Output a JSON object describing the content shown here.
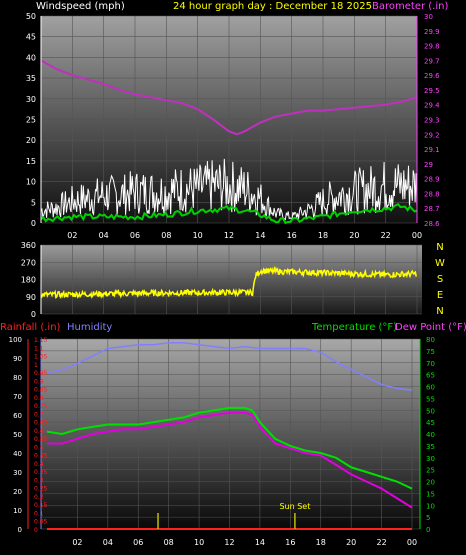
{
  "header": {
    "left": "Windspeed (mph)",
    "center": "24 hour graph day : December 18 2025",
    "right": "Barometer (.in)"
  },
  "labels": {
    "rainfall": "Rainfall (.in)",
    "humidity": "Humidity",
    "temperature": "Temperature (°F)",
    "dewpoint": "Dew Point (°F)",
    "sunset": "Sun Set"
  },
  "colors": {
    "wind_left_axis": "#ffffff",
    "barometer": "#c030c0",
    "barometer_axis": "#ff40ff",
    "header_center": "#ffff00",
    "wind_gust": "#ffffff",
    "wind_avg": "#00d000",
    "wind_dir": "#ffff00",
    "rainfall": "#ff2020",
    "humidity": "#8080ff",
    "temperature": "#00e000",
    "dewpoint": "#e000e0",
    "sunset_marker": "#c0c000"
  },
  "compass": [
    "N",
    "W",
    "S",
    "E",
    "N"
  ],
  "chart_data": [
    {
      "type": "line",
      "name": "wind-barometer",
      "x_ticks": [
        "02",
        "04",
        "06",
        "08",
        "10",
        "12",
        "14",
        "16",
        "18",
        "20",
        "22",
        "00"
      ],
      "y_left_ticks": [
        0,
        5,
        10,
        15,
        20,
        25,
        30,
        35,
        40,
        45,
        50
      ],
      "y_left_range": [
        0,
        50
      ],
      "y_right_ticks": [
        "28.6",
        "28.7",
        "28.8",
        "28.9",
        "29",
        "29.1",
        "29.2",
        "29.3",
        "29.4",
        "29.5",
        "29.6",
        "29.7",
        "29.8",
        "29.9",
        "30"
      ],
      "y_right_range": [
        28.6,
        30.0
      ],
      "barometer": {
        "x": [
          0,
          1,
          2,
          3,
          4,
          5,
          6,
          7,
          8,
          9,
          10,
          11,
          12,
          12.5,
          13,
          14,
          15,
          16,
          17,
          18,
          19,
          20,
          21,
          22,
          23,
          24
        ],
        "y": [
          29.7,
          29.64,
          29.6,
          29.57,
          29.54,
          29.5,
          29.47,
          29.45,
          29.43,
          29.41,
          29.37,
          29.3,
          29.22,
          29.2,
          29.22,
          29.28,
          29.32,
          29.34,
          29.36,
          29.36,
          29.37,
          29.38,
          29.39,
          29.4,
          29.42,
          29.45
        ]
      },
      "wind_gust_profile": {
        "x": [
          0,
          1,
          2,
          3,
          4,
          5,
          6,
          7,
          8,
          9,
          10,
          11,
          12,
          13,
          14,
          15,
          16,
          17,
          18,
          19,
          20,
          21,
          22,
          23,
          24
        ],
        "y": [
          4,
          5,
          7,
          8,
          9,
          9,
          10,
          10,
          10,
          11,
          11,
          12,
          12,
          11,
          8,
          3,
          2,
          4,
          7,
          9,
          10,
          11,
          12,
          12,
          12
        ]
      },
      "wind_avg_profile": {
        "x": [
          0,
          2,
          4,
          6,
          8,
          10,
          12,
          13,
          14,
          15,
          16,
          17,
          18,
          20,
          22,
          23,
          24
        ],
        "y": [
          1,
          1.5,
          1.5,
          1.5,
          2,
          3,
          3.5,
          3,
          2,
          0.5,
          0.5,
          1,
          1.5,
          3,
          3.5,
          4,
          3
        ]
      }
    },
    {
      "type": "line",
      "name": "wind-direction",
      "x_ticks": [
        "02",
        "04",
        "06",
        "08",
        "10",
        "12",
        "14",
        "16",
        "18",
        "20",
        "22",
        "00"
      ],
      "y_ticks": [
        0,
        90,
        180,
        270,
        360
      ],
      "y_range": [
        0,
        360
      ],
      "direction": {
        "x": [
          0,
          4,
          8,
          12,
          13.5,
          13.7,
          14,
          16,
          18,
          20,
          22,
          24
        ],
        "y": [
          100,
          105,
          110,
          112,
          112,
          200,
          225,
          220,
          215,
          210,
          205,
          210
        ]
      }
    },
    {
      "type": "line",
      "name": "temp-humidity-rain",
      "x_ticks": [
        "02",
        "04",
        "06",
        "08",
        "10",
        "12",
        "14",
        "16",
        "18",
        "20",
        "22",
        "00"
      ],
      "rain_ticks": [
        "0",
        "0.05",
        "0.1",
        "0.15",
        "0.2",
        "0.25",
        "0.3",
        "0.35",
        "0.4",
        "0.45",
        "0.5",
        "0.55",
        "0.6",
        "0.65",
        "0.7",
        "0.75",
        "0.8",
        "0.85",
        "0.9",
        "0.95",
        "1",
        "1.05",
        "1.1",
        "1.15"
      ],
      "rain_range": [
        0,
        1.15
      ],
      "humidity_ticks": [
        0,
        10,
        20,
        30,
        40,
        50,
        60,
        70,
        80,
        90,
        100
      ],
      "humidity_range": [
        0,
        100
      ],
      "temp_ticks": [
        0,
        5,
        10,
        15,
        20,
        25,
        30,
        35,
        40,
        45,
        50,
        55,
        60,
        65,
        70,
        75,
        80
      ],
      "temp_range": [
        0,
        80
      ],
      "humidity": {
        "x": [
          0,
          1,
          2,
          3,
          4,
          5,
          6,
          7,
          8,
          9,
          10,
          11,
          12,
          13,
          14,
          15,
          16,
          17,
          18,
          19,
          20,
          21,
          22,
          23,
          24
        ],
        "y": [
          82,
          84,
          87,
          91,
          95,
          96,
          97,
          97,
          98,
          98,
          97,
          96,
          95,
          96,
          95,
          95,
          95,
          95,
          93,
          88,
          84,
          80,
          76,
          74,
          73
        ]
      },
      "temperature": {
        "x": [
          0,
          1,
          2,
          3,
          4,
          5,
          6,
          7,
          8,
          9,
          10,
          11,
          12,
          13,
          13.5,
          14,
          15,
          16,
          17,
          18,
          19,
          20,
          21,
          22,
          23,
          24
        ],
        "y": [
          41,
          40,
          42,
          43,
          44,
          44,
          44,
          45,
          46,
          47,
          49,
          50,
          51,
          51,
          50,
          45,
          38,
          35,
          33,
          32,
          30,
          26,
          24,
          22,
          20,
          17
        ]
      },
      "dewpoint": {
        "x": [
          0,
          1,
          2,
          3,
          4,
          5,
          6,
          7,
          8,
          9,
          10,
          11,
          12,
          13,
          13.5,
          14,
          15,
          16,
          17,
          18,
          19,
          20,
          21,
          22,
          23,
          24
        ],
        "y": [
          36,
          36,
          38,
          40,
          41,
          42,
          42,
          43,
          44,
          45,
          47,
          48,
          49,
          49,
          48,
          43,
          36,
          34,
          32,
          31,
          27,
          23,
          20,
          17,
          13,
          9
        ]
      },
      "rainfall": {
        "x": [
          0,
          24
        ],
        "y": [
          0,
          0
        ]
      },
      "markers": [
        {
          "x": 7.3,
          "label": ""
        },
        {
          "x": 16.3,
          "label": "Sun Set"
        }
      ]
    }
  ]
}
